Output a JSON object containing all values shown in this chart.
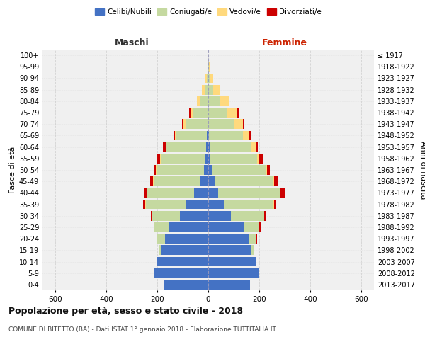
{
  "age_groups": [
    "0-4",
    "5-9",
    "10-14",
    "15-19",
    "20-24",
    "25-29",
    "30-34",
    "35-39",
    "40-44",
    "45-49",
    "50-54",
    "55-59",
    "60-64",
    "65-69",
    "70-74",
    "75-79",
    "80-84",
    "85-89",
    "90-94",
    "95-99",
    "100+"
  ],
  "birth_years": [
    "2013-2017",
    "2008-2012",
    "2003-2007",
    "1998-2002",
    "1993-1997",
    "1988-1992",
    "1983-1987",
    "1978-1982",
    "1973-1977",
    "1968-1972",
    "1963-1967",
    "1958-1962",
    "1953-1957",
    "1948-1952",
    "1943-1947",
    "1938-1942",
    "1933-1937",
    "1928-1932",
    "1923-1927",
    "1918-1922",
    "≤ 1917"
  ],
  "maschi": {
    "celibi": [
      175,
      210,
      200,
      185,
      170,
      155,
      110,
      85,
      55,
      30,
      18,
      10,
      8,
      5,
      0,
      0,
      0,
      0,
      0,
      0,
      0
    ],
    "coniugati": [
      0,
      0,
      0,
      10,
      30,
      55,
      110,
      160,
      185,
      185,
      185,
      175,
      155,
      120,
      90,
      60,
      30,
      15,
      5,
      2,
      0
    ],
    "vedovi": [
      0,
      0,
      0,
      0,
      0,
      0,
      0,
      2,
      2,
      2,
      2,
      3,
      5,
      5,
      8,
      10,
      15,
      10,
      5,
      2,
      0
    ],
    "divorziati": [
      0,
      0,
      0,
      0,
      0,
      2,
      5,
      8,
      10,
      12,
      10,
      12,
      10,
      5,
      5,
      5,
      0,
      0,
      0,
      0,
      0
    ]
  },
  "femmine": {
    "nubili": [
      165,
      200,
      185,
      170,
      160,
      140,
      90,
      60,
      40,
      25,
      15,
      8,
      5,
      2,
      0,
      0,
      0,
      0,
      0,
      0,
      0
    ],
    "coniugate": [
      0,
      0,
      0,
      10,
      30,
      60,
      130,
      195,
      240,
      230,
      210,
      185,
      165,
      135,
      100,
      75,
      45,
      20,
      5,
      2,
      0
    ],
    "vedove": [
      0,
      0,
      0,
      0,
      0,
      0,
      0,
      2,
      2,
      3,
      5,
      8,
      15,
      25,
      35,
      40,
      35,
      25,
      15,
      5,
      0
    ],
    "divorziate": [
      0,
      0,
      0,
      0,
      2,
      5,
      8,
      10,
      18,
      18,
      12,
      15,
      10,
      5,
      5,
      5,
      0,
      0,
      0,
      0,
      0
    ]
  },
  "colors": {
    "celibi": "#4472C4",
    "coniugati": "#C5D9A0",
    "vedovi": "#FFD97D",
    "divorziati": "#CC0000"
  },
  "xlim": 650,
  "title": "Popolazione per età, sesso e stato civile - 2018",
  "subtitle": "COMUNE DI BITETTO (BA) - Dati ISTAT 1° gennaio 2018 - Elaborazione TUTTITALIA.IT",
  "ylabel_left": "Fasce di età",
  "ylabel_right": "Anni di nascita",
  "xlabel_left": "Maschi",
  "xlabel_right": "Femmine",
  "bg_color": "#FFFFFF",
  "plot_bg_color": "#F0F0F0",
  "grid_color": "#CCCCCC",
  "bar_height": 0.85
}
